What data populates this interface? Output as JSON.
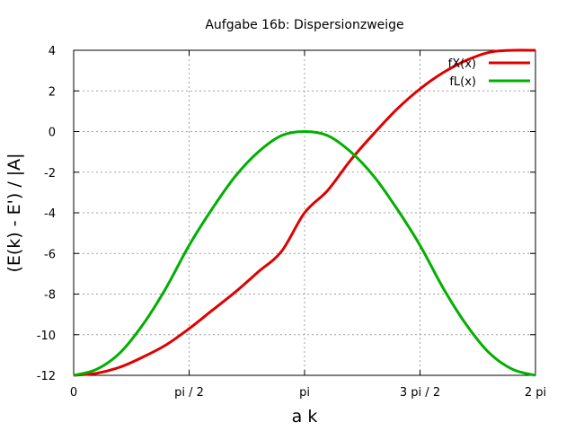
{
  "chart_data": {
    "type": "line",
    "title": "Aufgabe 16b: Dispersionzweige",
    "xlabel": "a k",
    "ylabel": "(E(k) - E') / |A|",
    "xlim": [
      0,
      6.283185
    ],
    "ylim": [
      -12,
      4
    ],
    "x_ticks": [
      {
        "value": 0,
        "label": "0"
      },
      {
        "value": 1.570796,
        "label": "pi / 2"
      },
      {
        "value": 3.141593,
        "label": "pi"
      },
      {
        "value": 4.712389,
        "label": "3 pi / 2"
      },
      {
        "value": 6.283185,
        "label": "2 pi"
      }
    ],
    "y_ticks": [
      {
        "value": 4,
        "label": "4"
      },
      {
        "value": 2,
        "label": "2"
      },
      {
        "value": 0,
        "label": "0"
      },
      {
        "value": -2,
        "label": "-2"
      },
      {
        "value": -4,
        "label": "-4"
      },
      {
        "value": -6,
        "label": "-6"
      },
      {
        "value": -8,
        "label": "-8"
      },
      {
        "value": -10,
        "label": "-10"
      },
      {
        "value": -12,
        "label": "-12"
      }
    ],
    "grid": true,
    "legend_position": "top-right",
    "x": [
      0,
      0.3142,
      0.6283,
      0.9425,
      1.2566,
      1.5708,
      1.885,
      2.1991,
      2.5133,
      2.8274,
      3.1416,
      3.4558,
      3.7699,
      4.0841,
      4.3982,
      4.7124,
      5.0265,
      5.3407,
      5.6549,
      5.969,
      6.2832
    ],
    "series": [
      {
        "name": "fX(x)",
        "color": "#e00000",
        "values": [
          -12.0,
          -11.9,
          -11.6,
          -11.1,
          -10.5,
          -9.7,
          -8.8,
          -7.9,
          -6.9,
          -5.9,
          -4.0,
          -2.9,
          -1.4,
          -0.1,
          1.1,
          2.1,
          2.9,
          3.5,
          3.9,
          4.0,
          4.0
        ]
      },
      {
        "name": "fL(x)",
        "color": "#00b000",
        "values": [
          -12.0,
          -11.7,
          -10.9,
          -9.5,
          -7.7,
          -5.6,
          -3.8,
          -2.2,
          -1.0,
          -0.2,
          0.0,
          -0.2,
          -1.0,
          -2.2,
          -3.8,
          -5.6,
          -7.7,
          -9.5,
          -10.9,
          -11.7,
          -12.0
        ]
      }
    ]
  }
}
